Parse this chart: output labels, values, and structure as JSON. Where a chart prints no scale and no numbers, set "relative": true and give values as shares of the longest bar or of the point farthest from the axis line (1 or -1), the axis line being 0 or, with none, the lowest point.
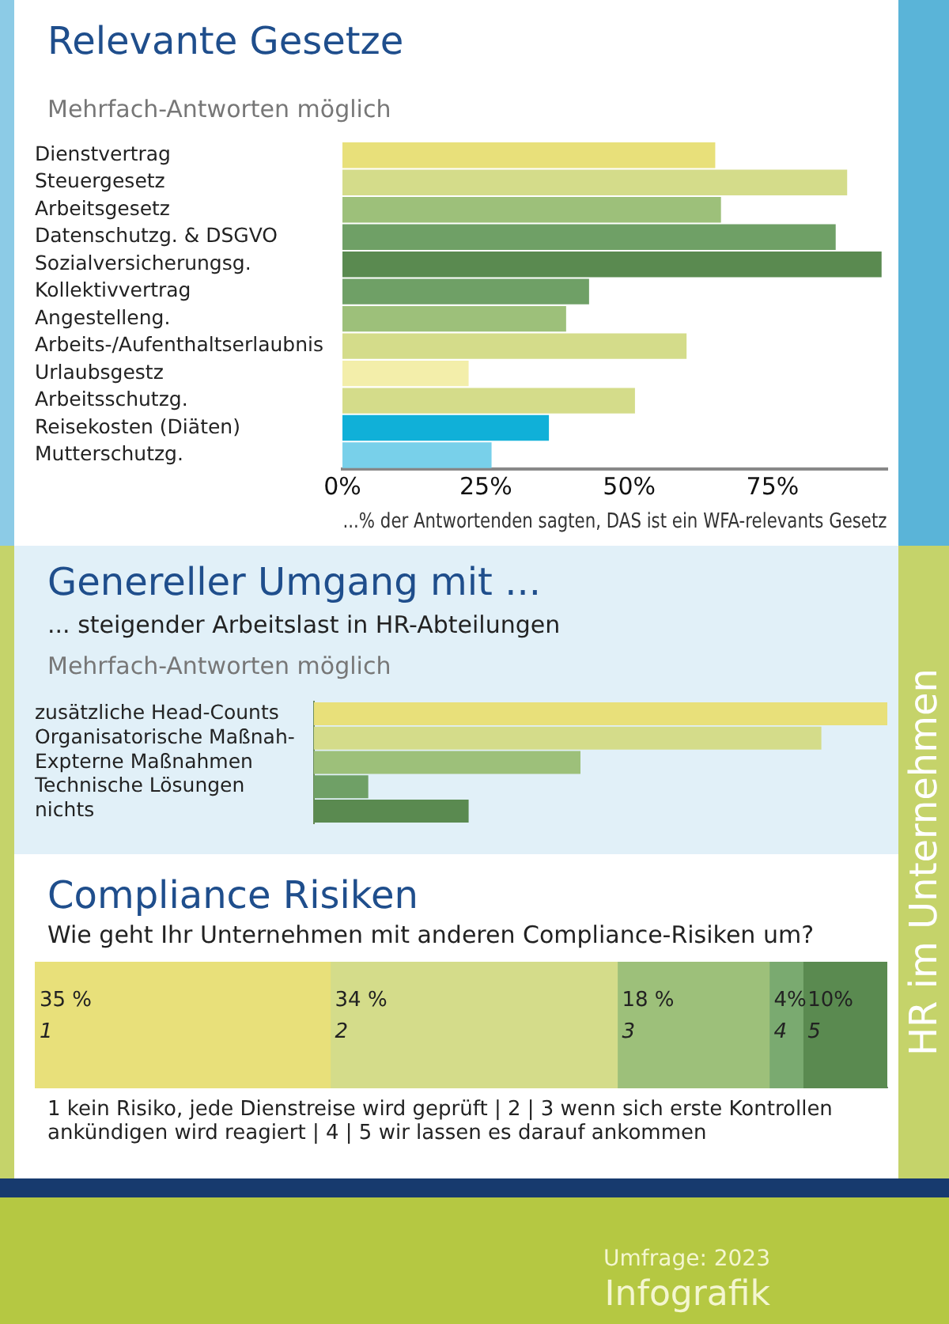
{
  "chart_data": [
    {
      "type": "bar",
      "orientation": "horizontal",
      "title": "Relevante Gesetze",
      "subtitle": "Mehrfach-Antworten möglich",
      "xlabel": "...% der Antwortenden sagten, DAS ist ein WFA-relevants Gesetz",
      "categories": [
        "Dienstvertrag",
        "Steuergesetz",
        "Arbeitsgesetz",
        "Datenschutzg. & DSGVO",
        "Sozialversicherungsg.",
        "Kollektivvertrag",
        "Angestelleng.",
        "Arbeits-/Aufenthaltserlaubnis",
        "Urlaubsgestz",
        "Arbeitsschutzg.",
        "Reisekosten (Diäten)",
        "Mutterschutzg."
      ],
      "values": [
        65,
        88,
        66,
        86,
        94,
        43,
        39,
        60,
        22,
        51,
        36,
        26
      ],
      "colors": [
        "#e8e07a",
        "#d4dc8a",
        "#9dc07a",
        "#6fa066",
        "#5a8a50",
        "#6fa066",
        "#9dc07a",
        "#d4dc8a",
        "#f3eeaa",
        "#d4dc8a",
        "#10b0d8",
        "#78d0ea"
      ],
      "xlim": [
        0,
        95
      ],
      "xticks": [
        {
          "value": 0,
          "label": "0%"
        },
        {
          "value": 25,
          "label": "25%"
        },
        {
          "value": 50,
          "label": "50%"
        },
        {
          "value": 75,
          "label": "75%"
        }
      ]
    },
    {
      "type": "bar",
      "orientation": "horizontal",
      "relative": true,
      "tick_labels": "y",
      "title": "Genereller Umgang mit ...",
      "subtitle": "... steigender Arbeitslast in HR-Abteilungen",
      "annotations": [
        "Mehrfach-Antworten möglich"
      ],
      "categories": [
        "zusätzliche Head-Counts",
        "Organisatorische Maßnah-",
        "Expterne Maßnahmen",
        "Technische Lösungen",
        "nichts"
      ],
      "values": [
        1,
        0.885,
        0.465,
        0.095,
        0.27
      ],
      "colors": [
        "#e8e07a",
        "#d4dc8a",
        "#9dc07a",
        "#6fa066",
        "#5a8a50"
      ]
    },
    {
      "type": "bar",
      "orientation": "horizontal",
      "stacked": true,
      "tick_labels": false,
      "title": "Compliance Risiken",
      "subtitle": "Wie geht Ihr Unternehmen mit anderen Compliance-Risiken um?",
      "annotations": [
        "1  kein Risiko, jede Dienstreise wird geprüft  |  2  |  3 wenn sich erste Kontrollen ankündigen wird reagiert  |  4  |  5  wir lassen es darauf ankommen",
        "Umfrage: 2023",
        "Infografik",
        "HR im Unternehmen"
      ],
      "categories": [
        null
      ],
      "xlim": [
        0,
        101
      ],
      "series": [
        {
          "name": "1",
          "color": "#e8e07a",
          "values": [
            35
          ],
          "value_labels": [
            "35 %"
          ]
        },
        {
          "name": "2",
          "color": "#d4dc8a",
          "values": [
            34
          ],
          "value_labels": [
            "34 %"
          ]
        },
        {
          "name": "3",
          "color": "#9dc07a",
          "values": [
            18
          ],
          "value_labels": [
            "18 %"
          ]
        },
        {
          "name": "4",
          "color": "#7aaa70",
          "values": [
            4
          ],
          "value_labels": [
            "4%"
          ]
        },
        {
          "name": "5",
          "color": "#5a8a50",
          "values": [
            10
          ],
          "value_labels": [
            "10%"
          ]
        }
      ]
    }
  ]
}
